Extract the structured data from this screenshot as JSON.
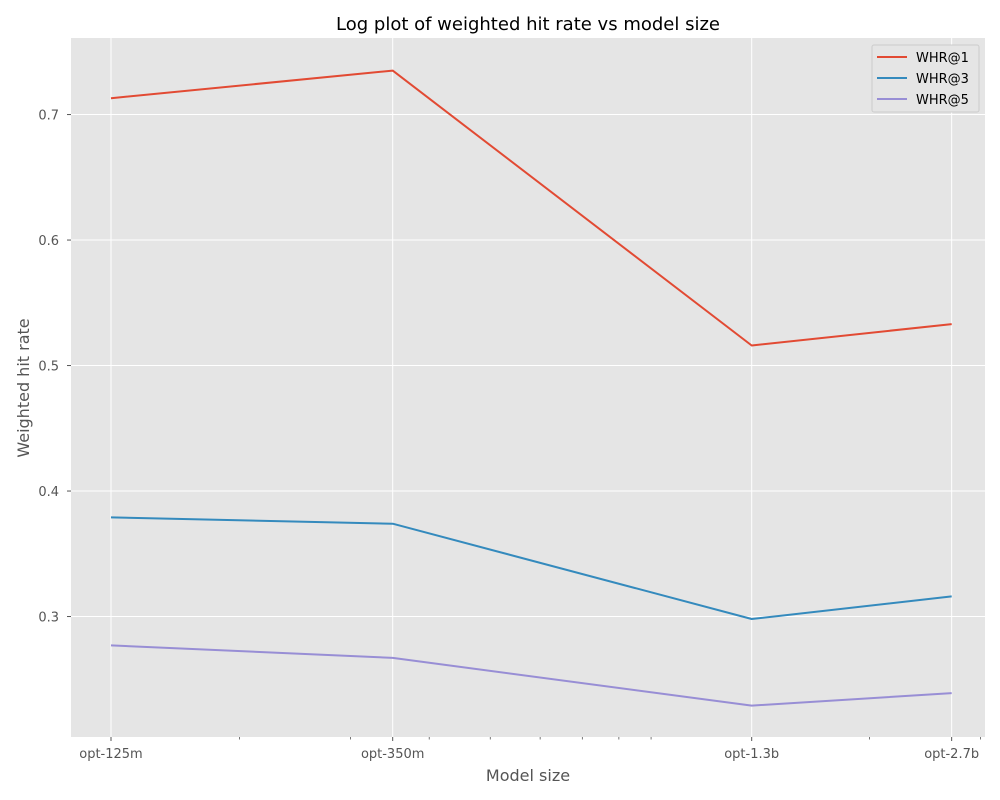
{
  "chart_data": {
    "type": "line",
    "title": "Log plot of weighted hit rate vs model size",
    "xlabel": "Model size",
    "ylabel": "Weighted hit rate",
    "x_scale": "log",
    "x": [
      125,
      350,
      1300,
      2700
    ],
    "x_tick_labels": [
      "opt-125m",
      "opt-350m",
      "opt-1.3b",
      "opt-2.7b"
    ],
    "y_ticks": [
      0.3,
      0.4,
      0.5,
      0.6,
      0.7
    ],
    "y_tick_labels": [
      "0.3",
      "0.4",
      "0.5",
      "0.6",
      "0.7"
    ],
    "xlim": [
      108,
      3050
    ],
    "ylim": [
      0.204,
      0.761
    ],
    "grid": true,
    "legend_position": "top-right",
    "series": [
      {
        "name": "WHR@1",
        "color": "#e24a33",
        "values": [
          0.713,
          0.735,
          0.516,
          0.533
        ]
      },
      {
        "name": "WHR@3",
        "color": "#348abd",
        "values": [
          0.379,
          0.374,
          0.298,
          0.316
        ]
      },
      {
        "name": "WHR@5",
        "color": "#988ed5",
        "values": [
          0.277,
          0.267,
          0.229,
          0.239
        ]
      }
    ]
  }
}
